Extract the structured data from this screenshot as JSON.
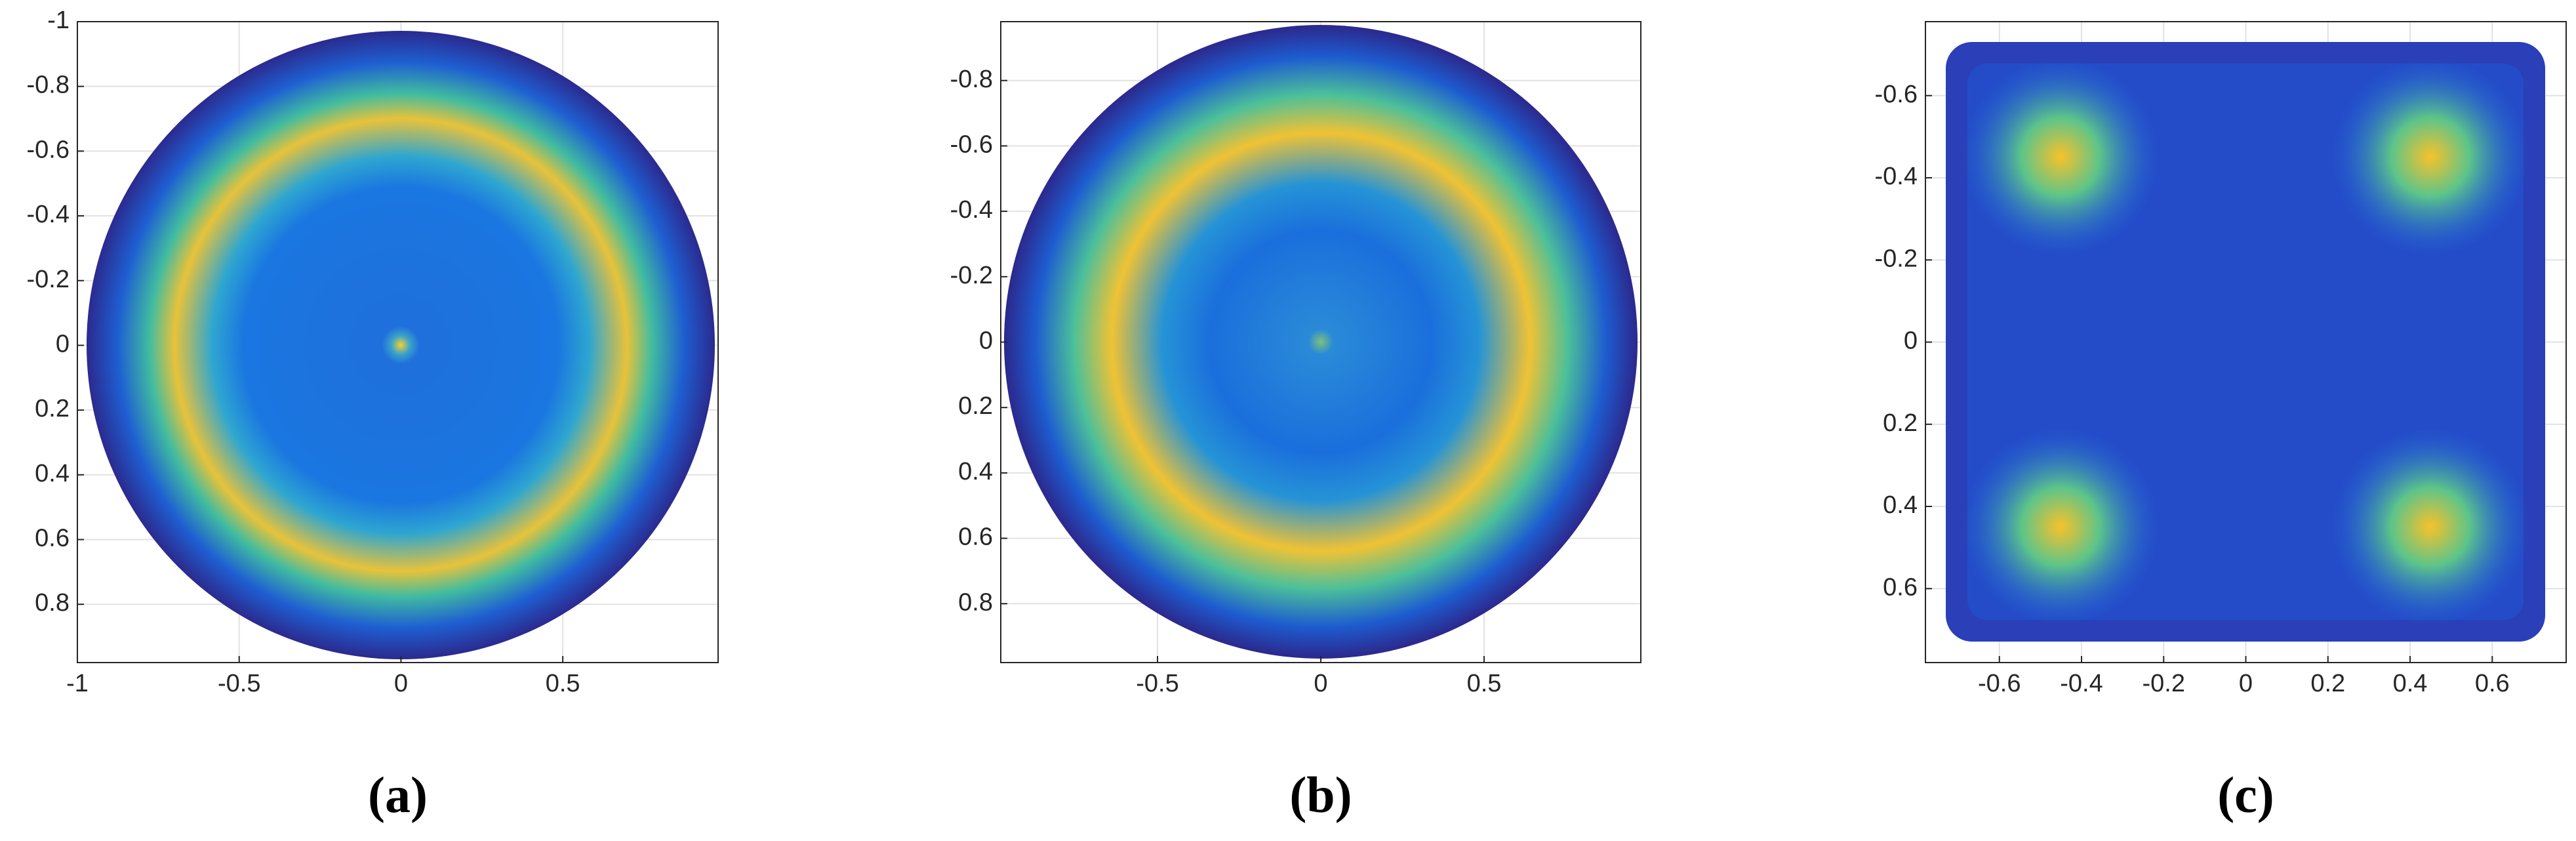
{
  "chart_data": [
    {
      "type": "heatmap",
      "caption": "(a)",
      "xlim": [
        -1,
        0.98
      ],
      "ylim": [
        -1,
        0.98
      ],
      "y_reversed": true,
      "grid": true,
      "xticks": [
        -1,
        -0.5,
        0,
        0.5
      ],
      "yticks": [
        -1,
        -0.8,
        -0.6,
        -0.4,
        -0.2,
        0,
        0.2,
        0.4,
        0.6,
        0.8
      ]
    },
    {
      "type": "heatmap",
      "caption": "(b)",
      "xlim": [
        -0.98,
        0.98
      ],
      "ylim": [
        -0.98,
        0.98
      ],
      "y_reversed": true,
      "grid": true,
      "xticks": [
        -0.5,
        0,
        0.5
      ],
      "yticks": [
        -0.8,
        -0.6,
        -0.4,
        -0.2,
        0,
        0.2,
        0.4,
        0.6,
        0.8
      ]
    },
    {
      "type": "heatmap",
      "caption": "(c)",
      "xlim": [
        -0.78,
        0.78
      ],
      "ylim": [
        -0.78,
        0.78
      ],
      "y_reversed": true,
      "grid": true,
      "xticks": [
        -0.6,
        -0.4,
        -0.2,
        0,
        0.2,
        0.4,
        0.6
      ],
      "yticks": [
        -0.6,
        -0.4,
        -0.2,
        0,
        0.2,
        0.4,
        0.6
      ]
    }
  ]
}
